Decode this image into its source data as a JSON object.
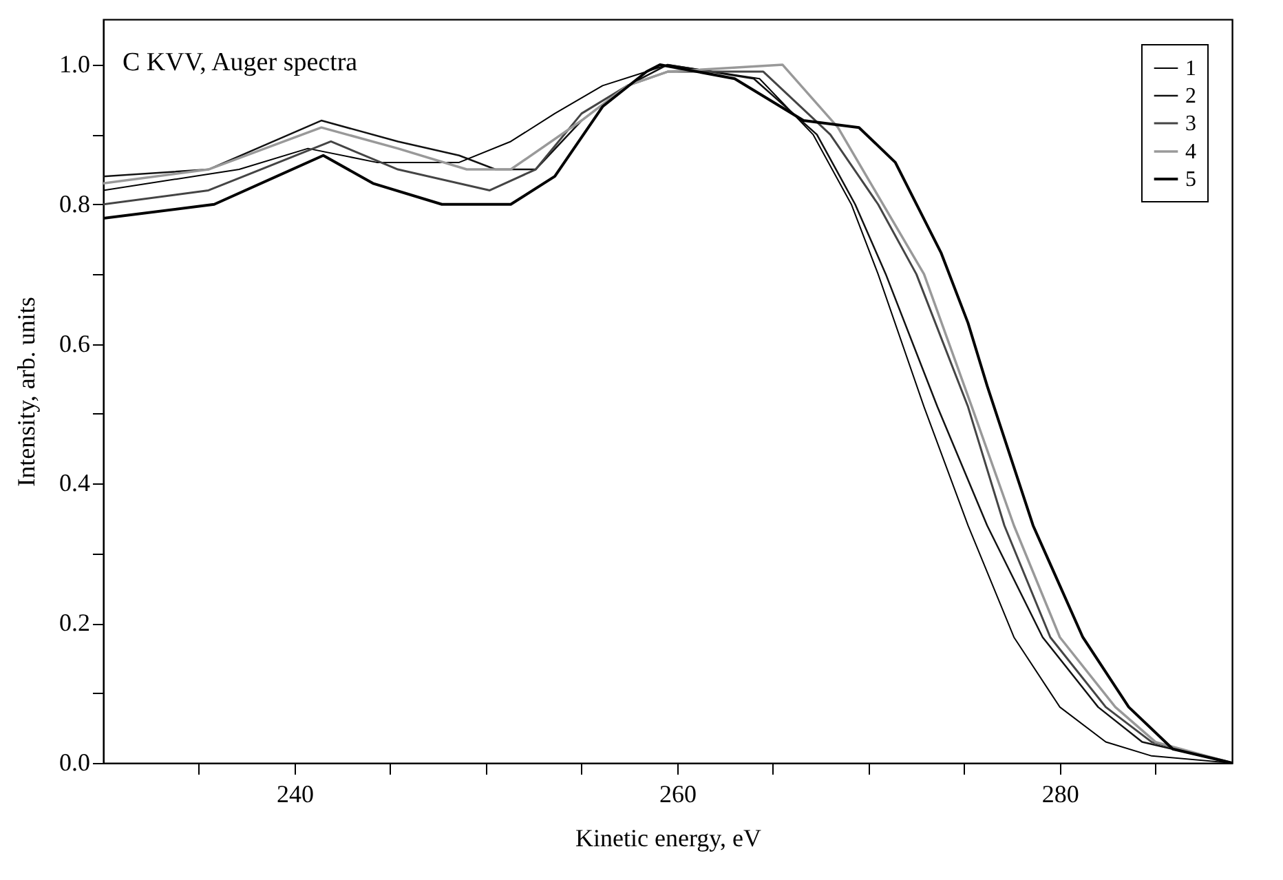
{
  "chart_data": {
    "type": "line",
    "xlabel": "Kinetic energy, eV",
    "ylabel": "Intensity, arb. units",
    "annotations": [
      "C KVV, Auger spectra"
    ],
    "xlim": [
      230,
      289
    ],
    "ylim": [
      0,
      1.065
    ],
    "xticks": [
      {
        "value": 235,
        "label": null
      },
      240,
      {
        "value": 245,
        "label": null
      },
      {
        "value": 250,
        "label": null
      },
      {
        "value": 255,
        "label": null
      },
      260,
      {
        "value": 265,
        "label": null
      },
      {
        "value": 270,
        "label": null
      },
      {
        "value": 275,
        "label": null
      },
      280,
      {
        "value": 285,
        "label": null
      }
    ],
    "yticks": [
      {
        "value": 0,
        "label": "0.0"
      },
      {
        "value": 0.1,
        "label": null
      },
      0.2,
      {
        "value": 0.3,
        "label": null
      },
      0.4,
      {
        "value": 0.5,
        "label": null
      },
      0.6,
      {
        "value": 0.7,
        "label": null
      },
      0.8,
      {
        "value": 0.9,
        "label": null
      },
      {
        "value": 1,
        "label": "1.0"
      }
    ],
    "grid": false,
    "legend": "top right",
    "marker": "none",
    "line_style": "solid",
    "series": [
      {
        "name": "1",
        "color": "#000000",
        "x": [
          230,
          237.1,
          240.7,
          244.3,
          248.6,
          251.3,
          253.6,
          256.1,
          258.4,
          259.5,
          264.3,
          267.1,
          269.1,
          270.5,
          272.9,
          275.2,
          277.6,
          280,
          282.4,
          284.8,
          289
        ],
        "values": [
          0.82,
          0.85,
          0.88,
          0.86,
          0.86,
          0.89,
          0.93,
          0.97,
          0.99,
          1.0,
          0.98,
          0.9,
          0.8,
          0.7,
          0.51,
          0.34,
          0.18,
          0.08,
          0.03,
          0.01,
          0.0
        ]
      },
      {
        "name": "2",
        "color": "#111111",
        "x": [
          230,
          235.5,
          241.4,
          245.4,
          248.6,
          250.5,
          252.6,
          255,
          257.4,
          259.5,
          264,
          267.3,
          269.3,
          270.9,
          273.6,
          276.2,
          279.1,
          282,
          284.3,
          289
        ],
        "values": [
          0.84,
          0.85,
          0.92,
          0.89,
          0.87,
          0.85,
          0.85,
          0.92,
          0.97,
          1.0,
          0.98,
          0.9,
          0.8,
          0.7,
          0.51,
          0.34,
          0.18,
          0.08,
          0.03,
          0.0
        ]
      },
      {
        "name": "3",
        "color": "#444444",
        "x": [
          230,
          235.5,
          241.9,
          245.4,
          250.2,
          252.6,
          255,
          257.4,
          259.5,
          264.5,
          268,
          270.5,
          272.5,
          275.2,
          277.1,
          279.5,
          282.4,
          284.8,
          289
        ],
        "values": [
          0.8,
          0.82,
          0.89,
          0.85,
          0.82,
          0.85,
          0.93,
          0.97,
          0.99,
          0.99,
          0.9,
          0.8,
          0.7,
          0.51,
          0.34,
          0.18,
          0.08,
          0.03,
          0.0
        ]
      },
      {
        "name": "4",
        "color": "#999999",
        "x": [
          230,
          235.5,
          241.4,
          245.4,
          249,
          251.3,
          255,
          257.4,
          259.5,
          265.5,
          268.4,
          271.4,
          272.9,
          275.4,
          277.6,
          280,
          282.9,
          285,
          289
        ],
        "values": [
          0.83,
          0.85,
          0.91,
          0.88,
          0.85,
          0.85,
          0.92,
          0.97,
          0.99,
          1.0,
          0.91,
          0.77,
          0.7,
          0.51,
          0.34,
          0.18,
          0.08,
          0.03,
          0.0
        ]
      },
      {
        "name": "5",
        "color": "#000000",
        "x": [
          230,
          235.8,
          241.5,
          244.1,
          247.7,
          251.3,
          253.6,
          256.1,
          258.4,
          259.1,
          263,
          266.6,
          269.5,
          271.4,
          273.8,
          275.2,
          276.2,
          278.6,
          281.2,
          283.6,
          285.9,
          289
        ],
        "values": [
          0.78,
          0.8,
          0.87,
          0.83,
          0.8,
          0.8,
          0.84,
          0.94,
          0.99,
          1.0,
          0.98,
          0.92,
          0.91,
          0.86,
          0.73,
          0.63,
          0.54,
          0.34,
          0.18,
          0.08,
          0.02,
          0.0
        ]
      }
    ]
  }
}
